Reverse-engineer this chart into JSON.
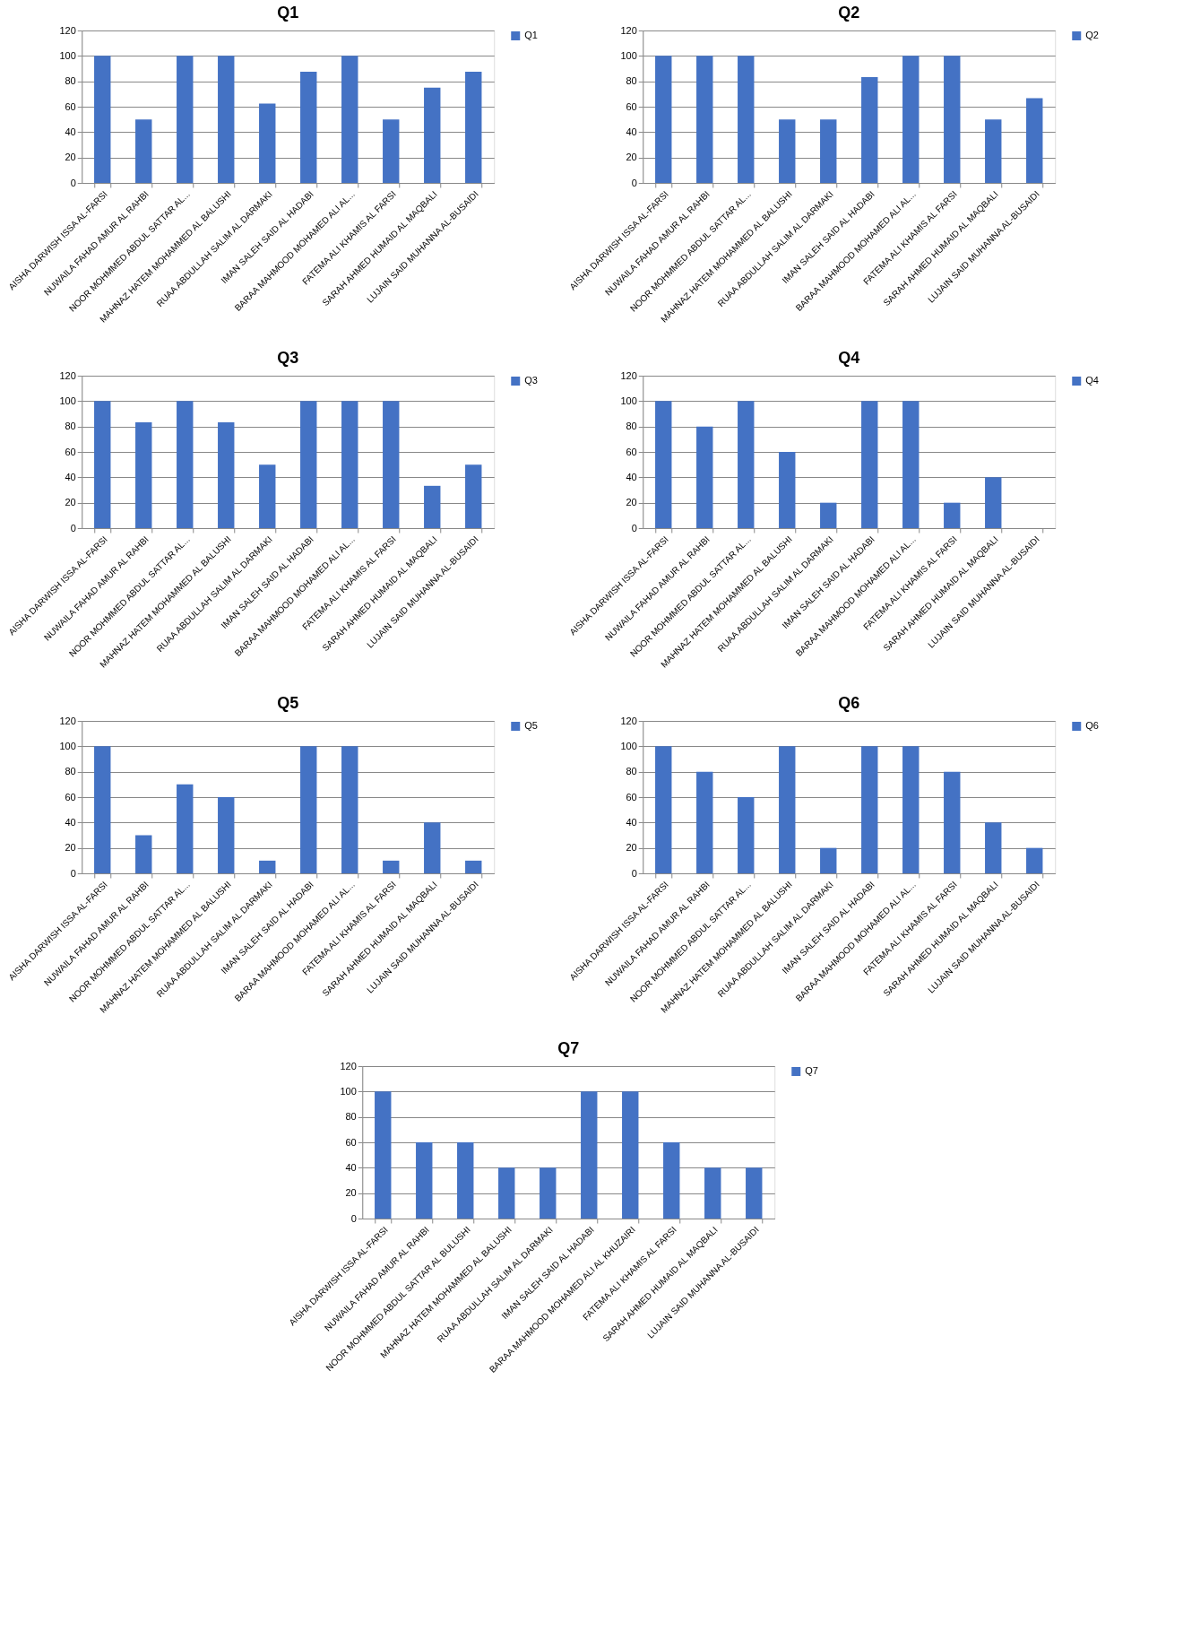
{
  "chart_data": [
    {
      "type": "bar",
      "title": "Q1",
      "categories": [
        "AISHA DARWISH ISSA AL-FARSI",
        "NUWAILA FAHAD AMUR AL RAHBI",
        "NOOR MOHMMED  ABDUL SATTAR  AL...",
        "MAHNAZ HATEM MOHAMMED  AL BALUSHI",
        "RUAA ABDULLAH SALIM AL DARMAKI",
        "IMAN SALEH SAID AL HADABI",
        "BARAA MAHMOOD MOHAMED  ALI AL...",
        "FATEMA ALI KHAMIS AL FARSI",
        "SARAH AHMED HUMAID  AL MAQBALI",
        "LUJAIN SAID MUHANNA  AL-BUSAIDI"
      ],
      "series": [
        {
          "name": "Q1",
          "color": "#4472c4",
          "values": [
            100,
            50,
            100,
            100,
            62.5,
            87.5,
            100,
            50,
            75,
            87.5
          ]
        }
      ],
      "ylim": [
        0,
        120
      ],
      "yticks": [
        0,
        20,
        40,
        60,
        80,
        100,
        120
      ],
      "grid": "y",
      "legend": "right"
    },
    {
      "type": "bar",
      "title": "Q2",
      "categories": [
        "AISHA DARWISH ISSA AL-FARSI",
        "NUWAILA FAHAD AMUR AL RAHBI",
        "NOOR MOHMMED  ABDUL SATTAR  AL...",
        "MAHNAZ HATEM MOHAMMED  AL BALUSHI",
        "RUAA ABDULLAH SALIM AL DARMAKI",
        "IMAN SALEH SAID AL HADABI",
        "BARAA MAHMOOD MOHAMED  ALI AL...",
        "FATEMA ALI KHAMIS AL FARSI",
        "SARAH AHMED HUMAID  AL MAQBALI",
        "LUJAIN SAID MUHANNA  AL-BUSAIDI"
      ],
      "series": [
        {
          "name": "Q2",
          "color": "#4472c4",
          "values": [
            100,
            100,
            100,
            50,
            50,
            83.3,
            100,
            100,
            50,
            66.7
          ]
        }
      ],
      "ylim": [
        0,
        120
      ],
      "yticks": [
        0,
        20,
        40,
        60,
        80,
        100,
        120
      ],
      "grid": "y",
      "legend": "right"
    },
    {
      "type": "bar",
      "title": "Q3",
      "categories": [
        "AISHA DARWISH ISSA AL-FARSI",
        "NUWAILA FAHAD AMUR AL RAHBI",
        "NOOR MOHMMED  ABDUL SATTAR  AL...",
        "MAHNAZ HATEM MOHAMMED  AL BALUSHI",
        "RUAA ABDULLAH SALIM AL DARMAKI",
        "IMAN SALEH SAID AL HADABI",
        "BARAA MAHMOOD MOHAMED  ALI AL...",
        "FATEMA ALI KHAMIS AL FARSI",
        "SARAH AHMED HUMAID  AL MAQBALI",
        "LUJAIN SAID MUHANNA  AL-BUSAIDI"
      ],
      "series": [
        {
          "name": "Q3",
          "color": "#4472c4",
          "values": [
            100,
            83.3,
            100,
            83.3,
            50,
            100,
            100,
            100,
            33.3,
            50
          ]
        }
      ],
      "ylim": [
        0,
        120
      ],
      "yticks": [
        0,
        20,
        40,
        60,
        80,
        100,
        120
      ],
      "grid": "y",
      "legend": "right"
    },
    {
      "type": "bar",
      "title": "Q4",
      "categories": [
        "AISHA DARWISH ISSA AL-FARSI",
        "NUWAILA FAHAD AMUR AL RAHBI",
        "NOOR MOHMMED  ABDUL SATTAR  AL...",
        "MAHNAZ HATEM MOHAMMED  AL BALUSHI",
        "RUAA ABDULLAH SALIM AL DARMAKI",
        "IMAN SALEH SAID AL HADABI",
        "BARAA MAHMOOD MOHAMED  ALI AL...",
        "FATEMA ALI KHAMIS AL FARSI",
        "SARAH AHMED HUMAID  AL MAQBALI",
        "LUJAIN SAID MUHANNA  AL-BUSAIDI"
      ],
      "series": [
        {
          "name": "Q4",
          "color": "#4472c4",
          "values": [
            100,
            80,
            100,
            60,
            20,
            100,
            100,
            20,
            40,
            0
          ]
        }
      ],
      "ylim": [
        0,
        120
      ],
      "yticks": [
        0,
        20,
        40,
        60,
        80,
        100,
        120
      ],
      "grid": "y",
      "legend": "right"
    },
    {
      "type": "bar",
      "title": "Q5",
      "categories": [
        "AISHA DARWISH ISSA AL-FARSI",
        "NUWAILA FAHAD AMUR AL RAHBI",
        "NOOR MOHMMED  ABDUL SATTAR  AL...",
        "MAHNAZ HATEM MOHAMMED  AL BALUSHI",
        "RUAA ABDULLAH SALIM AL DARMAKI",
        "IMAN SALEH SAID AL HADABI",
        "BARAA MAHMOOD MOHAMED  ALI AL...",
        "FATEMA ALI KHAMIS AL FARSI",
        "SARAH AHMED HUMAID  AL MAQBALI",
        "LUJAIN SAID MUHANNA  AL-BUSAIDI"
      ],
      "series": [
        {
          "name": "Q5",
          "color": "#4472c4",
          "values": [
            100,
            30,
            70,
            60,
            10,
            100,
            100,
            10,
            40,
            10
          ]
        }
      ],
      "ylim": [
        0,
        120
      ],
      "yticks": [
        0,
        20,
        40,
        60,
        80,
        100,
        120
      ],
      "grid": "y",
      "legend": "right"
    },
    {
      "type": "bar",
      "title": "Q6",
      "categories": [
        "AISHA DARWISH ISSA AL-FARSI",
        "NUWAILA FAHAD AMUR AL RAHBI",
        "NOOR MOHMMED  ABDUL SATTAR  AL...",
        "MAHNAZ HATEM MOHAMMED  AL BALUSHI",
        "RUAA ABDULLAH SALIM AL DARMAKI",
        "IMAN SALEH SAID AL HADABI",
        "BARAA MAHMOOD MOHAMED  ALI AL...",
        "FATEMA ALI KHAMIS AL FARSI",
        "SARAH AHMED HUMAID  AL MAQBALI",
        "LUJAIN SAID MUHANNA  AL-BUSAIDI"
      ],
      "series": [
        {
          "name": "Q6",
          "color": "#4472c4",
          "values": [
            100,
            80,
            60,
            100,
            20,
            100,
            100,
            80,
            40,
            20
          ]
        }
      ],
      "ylim": [
        0,
        120
      ],
      "yticks": [
        0,
        20,
        40,
        60,
        80,
        100,
        120
      ],
      "grid": "y",
      "legend": "right"
    },
    {
      "type": "bar",
      "title": "Q7",
      "categories": [
        "AISHA DARWISH ISSA AL-FARSI",
        "NUWAILA FAHAD AMUR AL RAHBI",
        "NOOR MOHMMED  ABDUL SATTAR  AL BULUSHI",
        "MAHNAZ HATEM MOHAMMED  AL BALUSHI",
        "RUAA ABDULLAH SALIM AL DARMAKI",
        "IMAN SALEH SAID AL HADABI",
        "BARAA MAHMOOD MOHAMED  ALI AL KHUZAIRI",
        "FATEMA ALI KHAMIS AL FARSI",
        "SARAH AHMED HUMAID  AL MAQBALI",
        "LUJAIN SAID MUHANNA  AL-BUSAIDI"
      ],
      "series": [
        {
          "name": "Q7",
          "color": "#4472c4",
          "values": [
            100,
            60,
            60,
            40,
            40,
            100,
            100,
            60,
            40,
            40
          ]
        }
      ],
      "ylim": [
        0,
        120
      ],
      "yticks": [
        0,
        20,
        40,
        60,
        80,
        100,
        120
      ],
      "grid": "y",
      "legend": "right"
    }
  ]
}
